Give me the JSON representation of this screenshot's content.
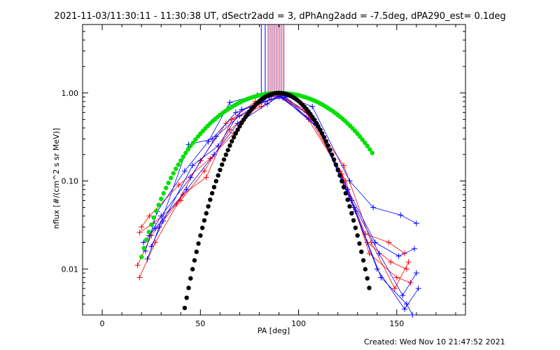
{
  "title": "2021-11-03/11:30:11 - 11:30:38 UT, dSectr2add = 3, dPhAng2add = -7.5deg, dPA290_est=  0.1deg",
  "footer": "Created: Wed Nov 10 21:47:52 2021",
  "chart_data": {
    "type": "line",
    "xlabel": "PA [deg]",
    "ylabel": "nflux [#/(cm^2 s sr MeV)]",
    "xlim": [
      -10,
      185
    ],
    "ylim": [
      0.003,
      6
    ],
    "yscale": "log",
    "grid": false,
    "xticks": [
      0,
      50,
      100,
      150
    ],
    "xtick_labels": [
      "0",
      "50",
      "100",
      "150"
    ],
    "yticks": [
      0.01,
      0.1,
      1
    ],
    "ytick_labels": [
      "0.01",
      "0.10",
      "1.00"
    ],
    "vertical_markers": {
      "blue": [
        81,
        83
      ],
      "purple": [
        84.5,
        85.5,
        86.5,
        87.5,
        88.5,
        89.5,
        90.5,
        91.5,
        92.5
      ]
    },
    "series": [
      {
        "color": "#ff0000",
        "marker": "+",
        "x": [
          19,
          26,
          40,
          52,
          65,
          80,
          90,
          104,
          122,
          135,
          147,
          155
        ],
        "y": [
          0.026,
          0.033,
          0.06,
          0.13,
          0.38,
          0.75,
          0.9,
          0.6,
          0.12,
          0.02,
          0.012,
          0.01
        ]
      },
      {
        "color": "#ff0000",
        "marker": "+",
        "x": [
          18,
          25,
          38,
          50,
          63,
          78,
          90,
          106,
          124,
          136,
          150,
          157
        ],
        "y": [
          0.011,
          0.024,
          0.055,
          0.17,
          0.45,
          0.8,
          0.95,
          0.55,
          0.1,
          0.015,
          0.008,
          0.007
        ]
      },
      {
        "color": "#ff0000",
        "marker": "+",
        "x": [
          19,
          27,
          41,
          53,
          66,
          81,
          91,
          105,
          121,
          134,
          146,
          154
        ],
        "y": [
          0.008,
          0.02,
          0.07,
          0.11,
          0.5,
          0.7,
          0.93,
          0.5,
          0.13,
          0.025,
          0.02,
          0.015
        ]
      },
      {
        "color": "#ff0000",
        "marker": "+",
        "x": [
          20,
          24,
          39,
          55,
          67,
          82,
          89,
          103,
          123,
          137,
          149,
          156
        ],
        "y": [
          0.03,
          0.04,
          0.09,
          0.18,
          0.35,
          0.85,
          0.97,
          0.65,
          0.15,
          0.02,
          0.006,
          0.012
        ]
      },
      {
        "color": "#0000ff",
        "marker": "+",
        "x": [
          22,
          28,
          42,
          54,
          65,
          79,
          91,
          107,
          126,
          138,
          152,
          160
        ],
        "y": [
          0.016,
          0.045,
          0.13,
          0.28,
          0.78,
          0.95,
          0.97,
          0.7,
          0.1,
          0.05,
          0.041,
          0.033
        ]
      },
      {
        "color": "#0000ff",
        "marker": "+",
        "x": [
          23,
          29,
          44,
          56,
          68,
          83,
          92,
          108,
          125,
          139,
          151,
          159
        ],
        "y": [
          0.013,
          0.03,
          0.26,
          0.3,
          0.6,
          0.8,
          0.95,
          0.5,
          0.08,
          0.02,
          0.014,
          0.017
        ]
      },
      {
        "color": "#0000ff",
        "marker": "+",
        "x": [
          21,
          27,
          43,
          57,
          69,
          84,
          90,
          109,
          127,
          141,
          153,
          160
        ],
        "y": [
          0.02,
          0.029,
          0.08,
          0.2,
          0.45,
          0.75,
          0.92,
          0.45,
          0.06,
          0.015,
          0.005,
          0.009
        ]
      },
      {
        "color": "#0000ff",
        "marker": "+",
        "x": [
          24,
          30,
          45,
          58,
          70,
          85,
          93,
          110,
          128,
          140,
          154,
          161
        ],
        "y": [
          0.024,
          0.04,
          0.11,
          0.32,
          0.55,
          0.9,
          0.9,
          0.4,
          0.05,
          0.01,
          0.0035,
          0.006
        ]
      },
      {
        "color": "#0000ff",
        "marker": "+",
        "x": [
          25,
          31,
          46,
          59,
          71,
          86,
          92,
          111,
          129,
          142,
          155,
          158
        ],
        "y": [
          0.018,
          0.035,
          0.15,
          0.25,
          0.65,
          0.85,
          0.88,
          0.38,
          0.045,
          0.008,
          0.004,
          0.003
        ]
      }
    ],
    "model_curves": [
      {
        "color": "#00e000",
        "marker": "circle",
        "x_range": [
          20,
          138
        ],
        "step": 1.25
      },
      {
        "color": "#000000",
        "marker": "circle",
        "x_range": [
          30,
          136
        ],
        "step": 1.0
      }
    ]
  }
}
